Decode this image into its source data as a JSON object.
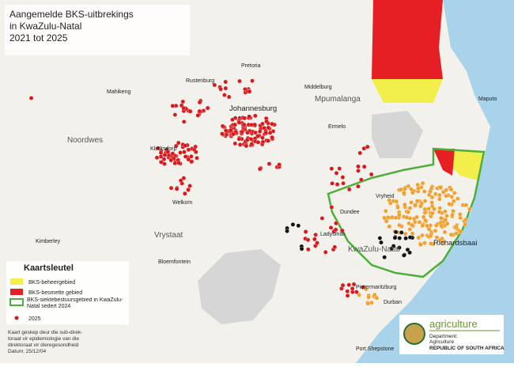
{
  "title": [
    "Aangemelde BKS-uitbrekings",
    "in KwaZulu-Natal",
    "2021 tot 2025"
  ],
  "places": [
    {
      "label": "Mahikeng"
    },
    {
      "label": "Rustenburg"
    },
    {
      "label": "Pretoria"
    },
    {
      "label": "Middelburg"
    },
    {
      "label": "Mpumalanga"
    },
    {
      "label": "Johannesburg"
    },
    {
      "label": "Noordwes"
    },
    {
      "label": "Klerksdorp"
    },
    {
      "label": "Ermelo"
    },
    {
      "label": "Vryheid"
    },
    {
      "label": "Welkom"
    },
    {
      "label": "Vrystaat"
    },
    {
      "label": "Dundee"
    },
    {
      "label": "Ladysmith"
    },
    {
      "label": "KwaZulu-Natal"
    },
    {
      "label": "Richardsbaai"
    },
    {
      "label": "Kimberley"
    },
    {
      "label": "Bloemfontein"
    },
    {
      "label": "Pietermaritzburg"
    },
    {
      "label": "Durban"
    },
    {
      "label": "Port Shepstone"
    },
    {
      "label": "Maputo"
    }
  ],
  "legend": {
    "title": "Kaartsleutel",
    "items": [
      "BKS-beheergebied",
      "BKS-besmette gebied",
      "BKS-siektebestuursgebied in KwaZulu-Natal sedert 2024",
      "2025"
    ]
  },
  "credit": [
    "Kaart geskep deur die sub-direk-",
    "toraat vir epidemiologie van die",
    "direktoraat vir dieregesondheid",
    "Datum: 25/12/04"
  ],
  "logo": {
    "name": "agriculture",
    "dept": "Department:",
    "unit": "Agriculture",
    "country": "REPUBLIC OF SOUTH AFRICA"
  }
}
